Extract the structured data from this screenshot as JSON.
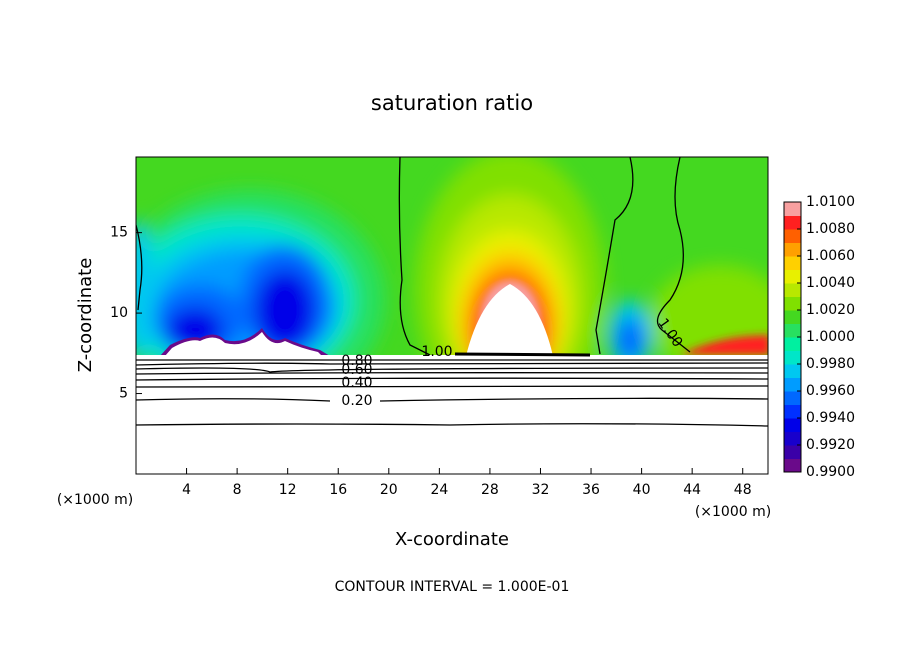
{
  "chart_data": {
    "type": "contour",
    "title": "saturation ratio",
    "x_label": "X-coordinate",
    "y_label": "Z-coordinate",
    "x_unit_left": "(×1000 m)",
    "x_unit_right": "(×1000 m)",
    "footer": "CONTOUR INTERVAL = 1.000E-01",
    "xlim": [
      0,
      50
    ],
    "xticks": [
      4,
      8,
      12,
      16,
      20,
      24,
      28,
      32,
      36,
      40,
      44,
      48
    ],
    "ylim": [
      0,
      19.7
    ],
    "yticks": [
      5,
      10,
      15
    ],
    "contour_labels": [
      "0.20",
      "0.40",
      "0.60",
      "0.80",
      "1.00",
      "1.00"
    ],
    "colorbar": {
      "lim": [
        0.99,
        1.01
      ],
      "colors": [
        "#6a0a8a",
        "#3a00a8",
        "#1800cc",
        "#0000e8",
        "#0030ff",
        "#0068ff",
        "#009cff",
        "#00c8f0",
        "#00e6c8",
        "#00f0a0",
        "#28e060",
        "#44d820",
        "#80e000",
        "#b8e800",
        "#e8f000",
        "#ffd000",
        "#ffa000",
        "#ff6000",
        "#ff2020",
        "#f8a0a0"
      ],
      "ticks": [
        {
          "value": 0.99,
          "label": "0.9900"
        },
        {
          "value": 0.992,
          "label": "0.9920"
        },
        {
          "value": 0.994,
          "label": "0.9940"
        },
        {
          "value": 0.996,
          "label": "0.9960"
        },
        {
          "value": 0.998,
          "label": "0.9980"
        },
        {
          "value": 1.0,
          "label": "1.0000"
        },
        {
          "value": 1.002,
          "label": "1.0020"
        },
        {
          "value": 1.004,
          "label": "1.0040"
        },
        {
          "value": 1.006,
          "label": "1.0060"
        },
        {
          "value": 1.008,
          "label": "1.0080"
        },
        {
          "value": 1.01,
          "label": "1.0100"
        }
      ]
    }
  }
}
